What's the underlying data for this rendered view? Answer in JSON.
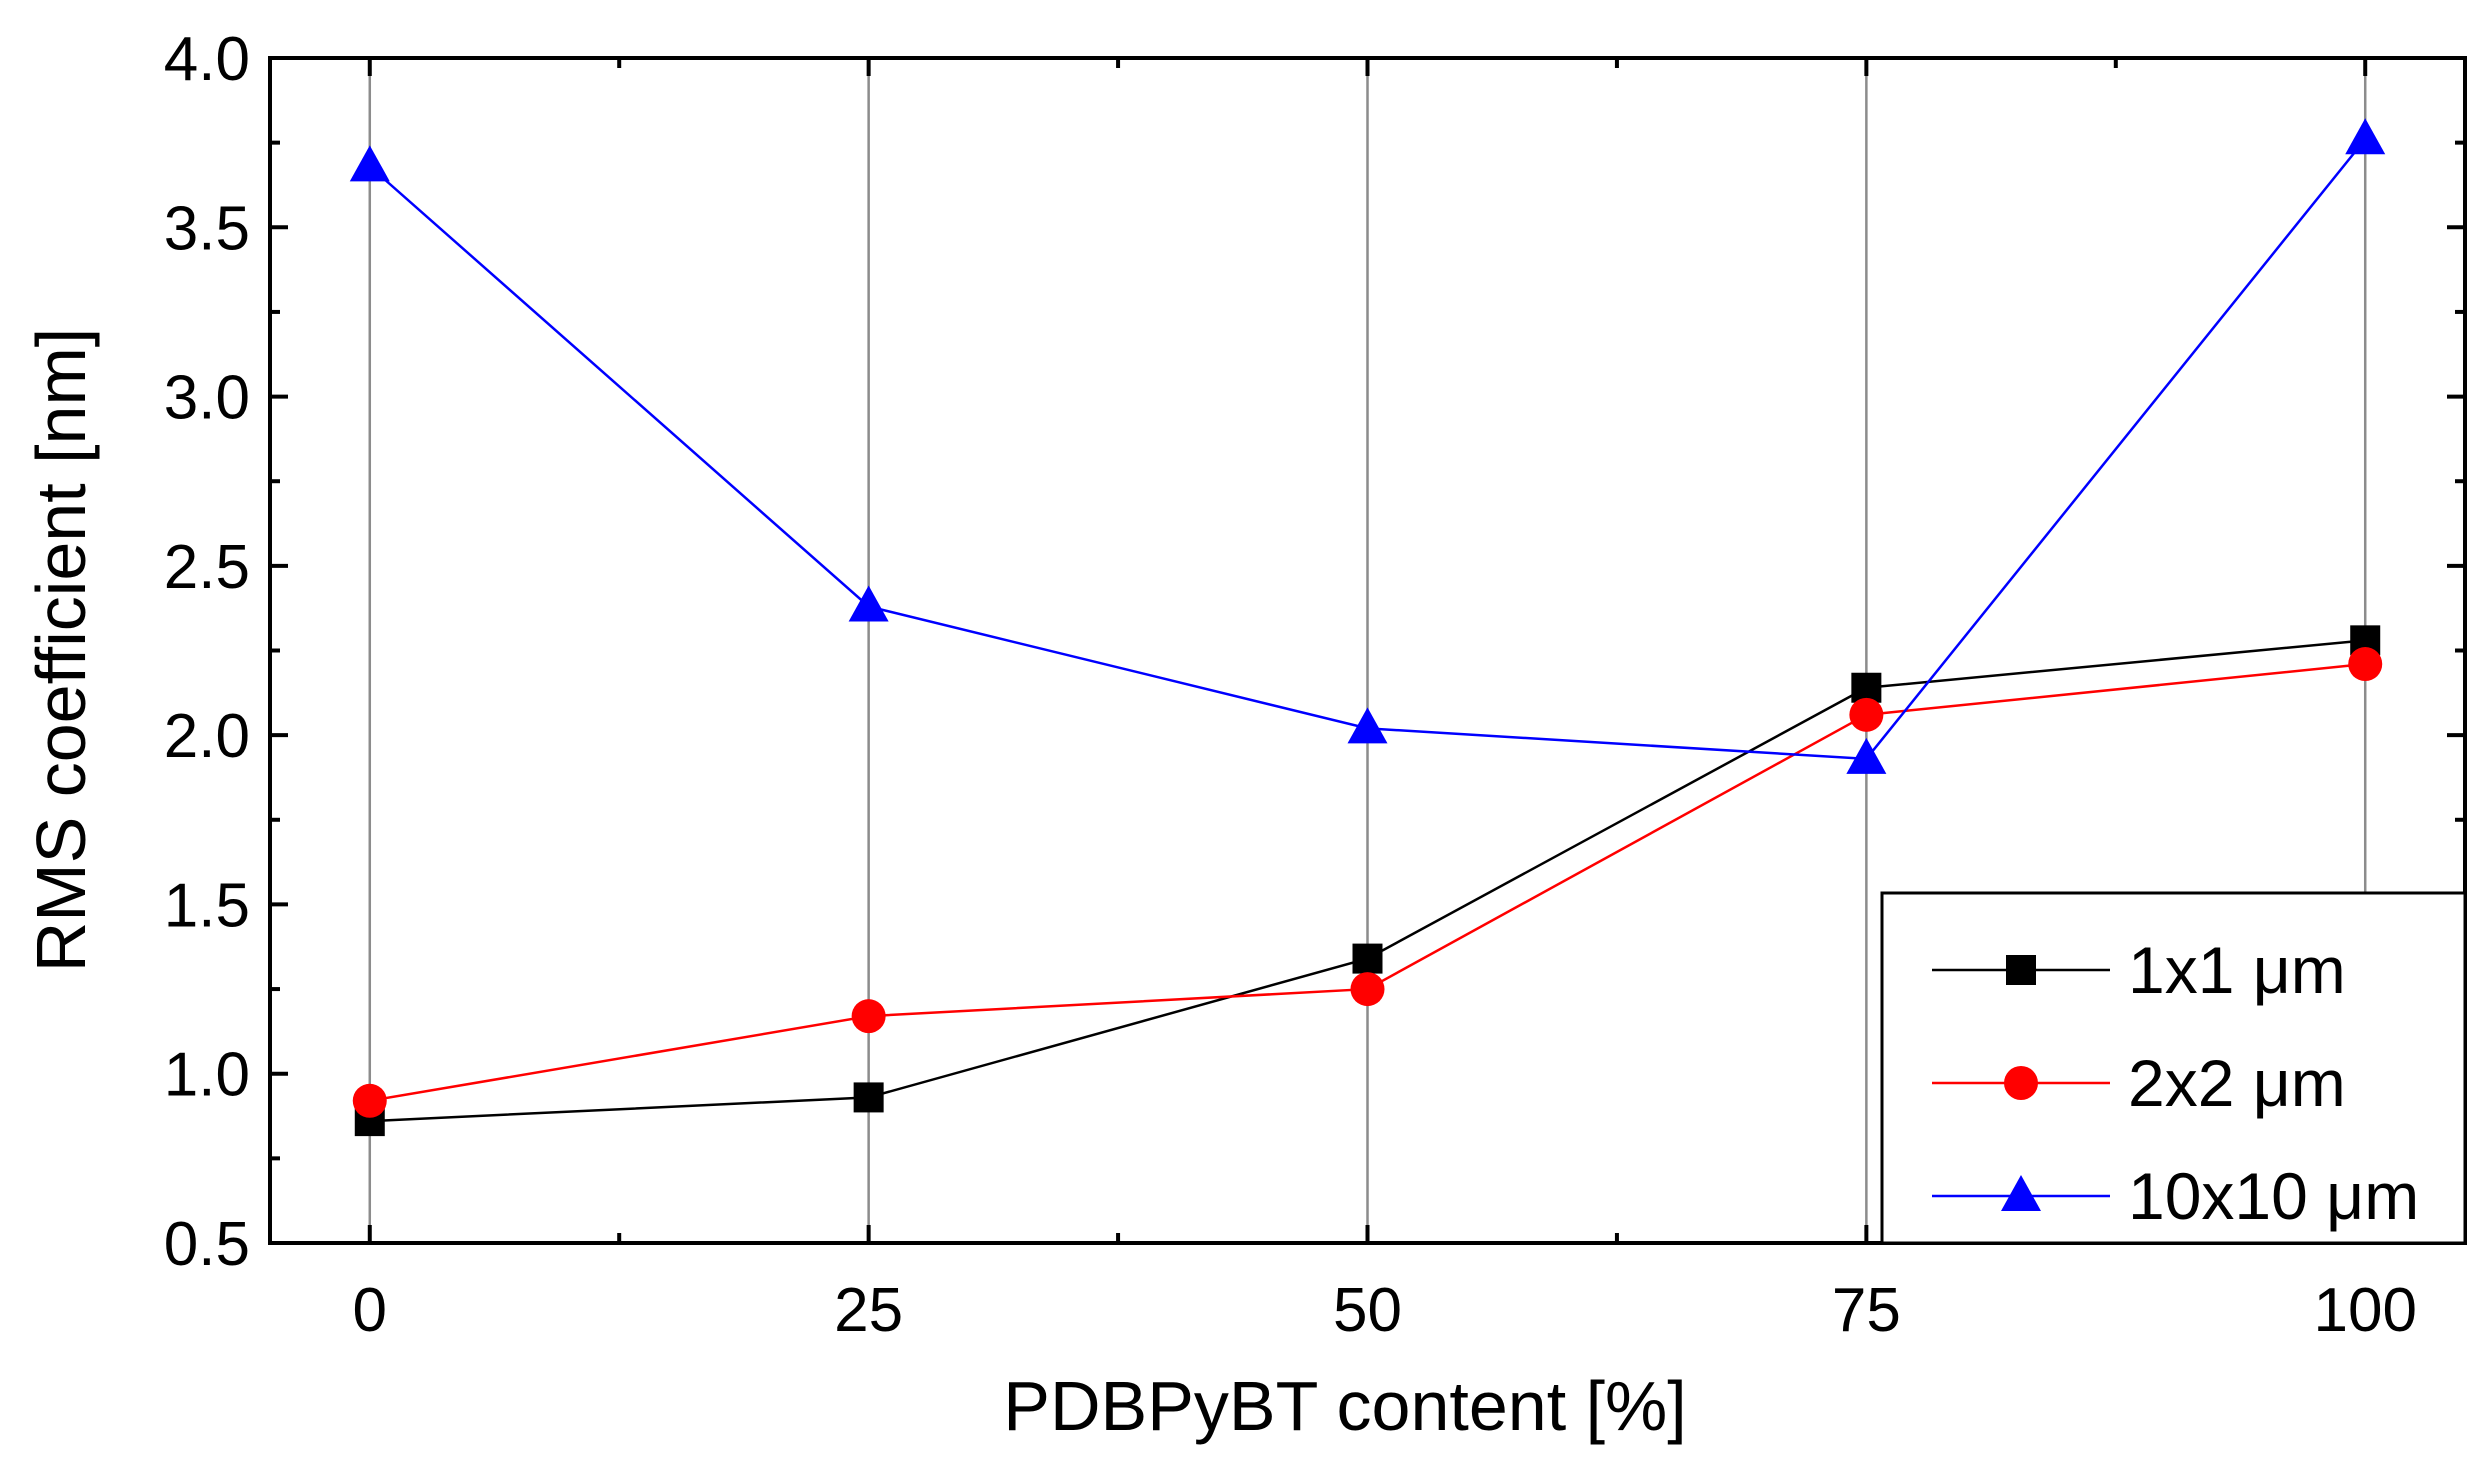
{
  "chart_data": {
    "type": "line",
    "title": "",
    "xlabel": "PDBPyBT content [%]",
    "ylabel": "RMS coefficient [nm]",
    "xlim": [
      -5,
      105
    ],
    "ylim": [
      0.5,
      4.0
    ],
    "xticks": [
      0,
      25,
      50,
      75,
      100
    ],
    "xtick_labels": [
      "0",
      "25",
      "50",
      "75",
      "100"
    ],
    "xminor": [
      12.5,
      37.5,
      62.5,
      87.5
    ],
    "yticks": [
      0.5,
      1.0,
      1.5,
      2.0,
      2.5,
      3.0,
      3.5,
      4.0
    ],
    "ytick_labels": [
      "0.5",
      "1.0",
      "1.5",
      "2.0",
      "2.5",
      "3.0",
      "3.5",
      "4.0"
    ],
    "yminor": [
      0.75,
      1.25,
      1.75,
      2.25,
      2.75,
      3.25,
      3.75
    ],
    "grid": "vertical",
    "legend_position": "bottom-right",
    "x": [
      0,
      25,
      50,
      75,
      100
    ],
    "series": [
      {
        "name": "1x1 μm",
        "values": [
          0.86,
          0.93,
          1.34,
          2.14,
          2.28
        ],
        "color": "#000000",
        "marker": "square"
      },
      {
        "name": "2x2 μm",
        "values": [
          0.92,
          1.17,
          1.25,
          2.06,
          2.21
        ],
        "color": "#ff0000",
        "marker": "circle"
      },
      {
        "name": "10x10 μm",
        "values": [
          3.68,
          2.38,
          2.02,
          1.93,
          3.76
        ],
        "color": "#0000ff",
        "marker": "triangle"
      }
    ]
  }
}
